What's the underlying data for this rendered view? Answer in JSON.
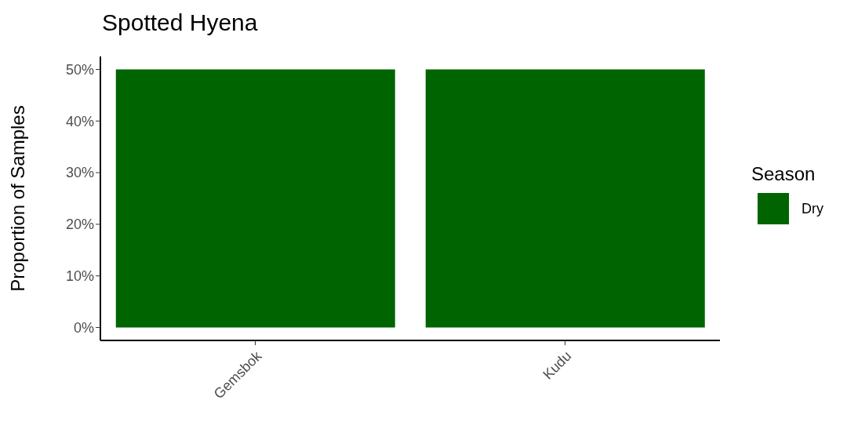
{
  "chart_data": {
    "type": "bar",
    "title": "Spotted Hyena",
    "ylabel": "Proportion of Samples",
    "legend_title": "Season",
    "categories": [
      "Gemsbok",
      "Kudu"
    ],
    "series": [
      {
        "name": "Dry",
        "color": "#006400",
        "values": [
          50,
          50
        ]
      }
    ],
    "ylim": [
      -2.5,
      52.5
    ],
    "yticks": [
      {
        "value": 0,
        "label": "0%"
      },
      {
        "value": 10,
        "label": "10%"
      },
      {
        "value": 20,
        "label": "20%"
      },
      {
        "value": 30,
        "label": "30%"
      },
      {
        "value": 40,
        "label": "40%"
      },
      {
        "value": 50,
        "label": "50%"
      }
    ],
    "grid": false,
    "legend": "right"
  }
}
